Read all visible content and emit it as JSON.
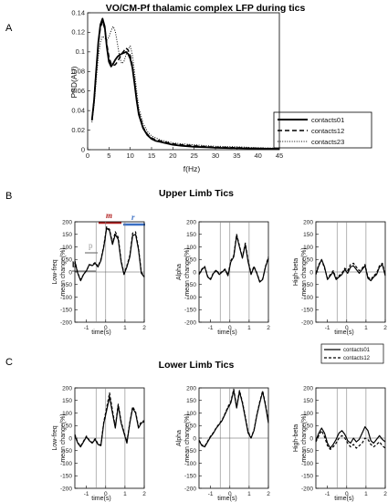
{
  "panel_letters": [
    "A",
    "B",
    "C"
  ],
  "section_titles": {
    "B": "Upper Limb Tics",
    "C": "Lower Limb Tics"
  },
  "colors": {
    "m_bar": "#b22222",
    "r_bar": "#3a6fc4",
    "p_bar": "#999999",
    "grid": "#808080"
  },
  "annotations": {
    "b": "b",
    "p": "p",
    "m": "m",
    "r": "r"
  },
  "chart_data": [
    {
      "id": "A",
      "type": "line",
      "title": "VO/CM-Pf thalamic complex LFP during tics",
      "xlabel": "f(Hz)",
      "ylabel": "PSD(AU)",
      "xlim": [
        0,
        45
      ],
      "ylim": [
        0,
        0.14
      ],
      "xticks": [
        0,
        5,
        10,
        15,
        20,
        25,
        30,
        35,
        40,
        45
      ],
      "yticks": [
        0,
        0.02,
        0.04,
        0.06,
        0.08,
        0.1,
        0.12,
        0.14
      ],
      "legend_position": "bottom-right",
      "x": [
        1,
        1.5,
        2,
        2.5,
        3,
        3.5,
        4,
        4.5,
        5,
        5.5,
        6,
        6.5,
        7,
        7.5,
        8,
        8.5,
        9,
        9.5,
        10,
        10.5,
        11,
        11.5,
        12,
        13,
        14,
        15,
        16,
        17,
        18,
        20,
        22,
        25,
        28,
        30,
        35,
        40,
        45
      ],
      "series": [
        {
          "name": "contacts01",
          "style": "solid",
          "values": [
            0.03,
            0.05,
            0.08,
            0.11,
            0.128,
            0.134,
            0.126,
            0.105,
            0.09,
            0.085,
            0.088,
            0.092,
            0.095,
            0.097,
            0.098,
            0.099,
            0.1,
            0.098,
            0.093,
            0.084,
            0.068,
            0.05,
            0.036,
            0.022,
            0.015,
            0.011,
            0.009,
            0.008,
            0.007,
            0.005,
            0.004,
            0.003,
            0.0025,
            0.002,
            0.0015,
            0.001,
            0.001
          ]
        },
        {
          "name": "contacts12",
          "style": "dashed",
          "values": [
            0.03,
            0.05,
            0.079,
            0.108,
            0.125,
            0.131,
            0.124,
            0.108,
            0.095,
            0.088,
            0.086,
            0.087,
            0.09,
            0.094,
            0.098,
            0.101,
            0.104,
            0.102,
            0.096,
            0.086,
            0.07,
            0.052,
            0.038,
            0.023,
            0.016,
            0.012,
            0.01,
            0.009,
            0.008,
            0.006,
            0.005,
            0.004,
            0.003,
            0.0025,
            0.002,
            0.0015,
            0.001
          ]
        },
        {
          "name": "contacts23",
          "style": "dotted",
          "values": [
            0.028,
            0.045,
            0.07,
            0.095,
            0.11,
            0.116,
            0.114,
            0.112,
            0.115,
            0.122,
            0.126,
            0.121,
            0.108,
            0.095,
            0.088,
            0.09,
            0.097,
            0.103,
            0.106,
            0.097,
            0.08,
            0.06,
            0.043,
            0.027,
            0.019,
            0.014,
            0.012,
            0.01,
            0.009,
            0.007,
            0.006,
            0.005,
            0.004,
            0.0035,
            0.003,
            0.002,
            0.0015
          ]
        }
      ]
    },
    {
      "id": "B1",
      "type": "line",
      "group": "Upper Limb Tics",
      "ylabel": [
        "Low-freq",
        "mean change(%)"
      ],
      "xlabel": "time(s)",
      "xlim": [
        -1.6,
        2
      ],
      "ylim": [
        -200,
        200
      ],
      "xticks": [
        -1,
        0,
        1,
        2
      ],
      "yticks": [
        -200,
        -150,
        -100,
        -50,
        0,
        50,
        100,
        150,
        200
      ],
      "vlines": [
        -0.5,
        0,
        1
      ],
      "x": [
        -1.6,
        -1.45,
        -1.3,
        -1.15,
        -1.0,
        -0.85,
        -0.7,
        -0.55,
        -0.4,
        -0.25,
        -0.1,
        0.05,
        0.2,
        0.35,
        0.5,
        0.65,
        0.8,
        0.95,
        1.1,
        1.25,
        1.4,
        1.55,
        1.7,
        1.85,
        2.0
      ],
      "series": [
        {
          "name": "contacts01",
          "values": [
            40,
            -5,
            -35,
            -10,
            5,
            30,
            25,
            35,
            20,
            45,
            100,
            175,
            165,
            110,
            150,
            130,
            40,
            -10,
            20,
            60,
            145,
            150,
            90,
            -5,
            -20
          ]
        },
        {
          "name": "contacts12",
          "values": [
            45,
            -5,
            -30,
            -10,
            5,
            28,
            28,
            38,
            22,
            50,
            105,
            180,
            170,
            115,
            160,
            138,
            45,
            -5,
            25,
            65,
            155,
            160,
            95,
            0,
            -18
          ]
        }
      ]
    },
    {
      "id": "B2",
      "type": "line",
      "group": "Upper Limb Tics",
      "ylabel": [
        "Alpha",
        "mean change(%)"
      ],
      "xlabel": "time(s)",
      "xlim": [
        -1.6,
        2
      ],
      "ylim": [
        -200,
        200
      ],
      "xticks": [
        -1,
        0,
        1,
        2
      ],
      "yticks": [
        -200,
        -150,
        -100,
        -50,
        0,
        50,
        100,
        150,
        200
      ],
      "vlines": [
        -0.5,
        0,
        1
      ],
      "x": [
        -1.6,
        -1.45,
        -1.3,
        -1.15,
        -1.0,
        -0.85,
        -0.7,
        -0.55,
        -0.4,
        -0.25,
        -0.1,
        0.05,
        0.2,
        0.35,
        0.5,
        0.65,
        0.8,
        0.95,
        1.1,
        1.25,
        1.4,
        1.55,
        1.7,
        1.85,
        2.0
      ],
      "series": [
        {
          "name": "contacts01",
          "values": [
            -10,
            10,
            20,
            -20,
            -30,
            -5,
            5,
            -10,
            0,
            10,
            -15,
            40,
            60,
            145,
            100,
            55,
            110,
            40,
            -10,
            20,
            -5,
            -40,
            -30,
            20,
            55
          ]
        },
        {
          "name": "contacts12",
          "values": [
            -8,
            12,
            22,
            -18,
            -28,
            -3,
            8,
            -8,
            2,
            12,
            -12,
            45,
            65,
            150,
            105,
            58,
            115,
            45,
            -5,
            22,
            -3,
            -38,
            -28,
            22,
            60
          ]
        }
      ]
    },
    {
      "id": "B3",
      "type": "line",
      "group": "Upper Limb Tics",
      "ylabel": [
        "High-beta",
        "mean change(%)"
      ],
      "xlabel": "time(s)",
      "xlim": [
        -1.6,
        2
      ],
      "ylim": [
        -200,
        200
      ],
      "xticks": [
        -1,
        0,
        1,
        2
      ],
      "yticks": [
        -200,
        -150,
        -100,
        -50,
        0,
        50,
        100,
        150,
        200
      ],
      "vlines": [
        -0.5,
        0,
        1
      ],
      "x": [
        -1.6,
        -1.45,
        -1.3,
        -1.15,
        -1.0,
        -0.85,
        -0.7,
        -0.55,
        -0.4,
        -0.25,
        -0.1,
        0.05,
        0.2,
        0.35,
        0.5,
        0.65,
        0.8,
        0.95,
        1.1,
        1.25,
        1.4,
        1.55,
        1.7,
        1.85,
        2.0
      ],
      "series": [
        {
          "name": "contacts01",
          "values": [
            -10,
            25,
            50,
            20,
            -30,
            -15,
            0,
            -30,
            -20,
            -10,
            10,
            -5,
            20,
            25,
            10,
            -5,
            10,
            25,
            -25,
            -35,
            -20,
            -10,
            20,
            30,
            -15
          ]
        },
        {
          "name": "contacts12",
          "values": [
            -5,
            30,
            48,
            15,
            -25,
            -10,
            5,
            -25,
            -15,
            -5,
            15,
            5,
            30,
            35,
            20,
            5,
            15,
            30,
            -20,
            -30,
            -15,
            -5,
            25,
            35,
            -10
          ]
        }
      ]
    },
    {
      "id": "C1",
      "type": "line",
      "group": "Lower Limb Tics",
      "ylabel": [
        "Low-freq",
        "mean change(%)"
      ],
      "xlabel": "time(s)",
      "xlim": [
        -1.6,
        2
      ],
      "ylim": [
        -200,
        200
      ],
      "xticks": [
        -1,
        0,
        1,
        2
      ],
      "yticks": [
        -200,
        -150,
        -100,
        -50,
        0,
        50,
        100,
        150,
        200
      ],
      "vlines": [
        -0.5,
        0,
        1
      ],
      "legend_position": "top-right",
      "x": [
        -1.6,
        -1.45,
        -1.3,
        -1.15,
        -1.0,
        -0.85,
        -0.7,
        -0.55,
        -0.4,
        -0.25,
        -0.1,
        0.05,
        0.2,
        0.35,
        0.5,
        0.65,
        0.8,
        0.95,
        1.1,
        1.25,
        1.4,
        1.55,
        1.7,
        1.85,
        2.0
      ],
      "series": [
        {
          "name": "contacts01",
          "values": [
            10,
            -20,
            -35,
            -15,
            5,
            -10,
            -20,
            -5,
            -25,
            -30,
            60,
            110,
            165,
            100,
            40,
            130,
            60,
            20,
            -20,
            60,
            120,
            100,
            40,
            60,
            65
          ]
        },
        {
          "name": "contacts12",
          "values": [
            15,
            -18,
            -32,
            -12,
            8,
            -8,
            -18,
            -2,
            -22,
            -28,
            65,
            120,
            180,
            110,
            45,
            135,
            65,
            25,
            -15,
            62,
            125,
            105,
            45,
            65,
            70
          ]
        }
      ]
    },
    {
      "id": "C2",
      "type": "line",
      "group": "Lower Limb Tics",
      "ylabel": [
        "Alpha",
        "mean change(%)"
      ],
      "xlabel": "time(s)",
      "xlim": [
        -1.6,
        2
      ],
      "ylim": [
        -200,
        200
      ],
      "xticks": [
        -1,
        0,
        1,
        2
      ],
      "yticks": [
        -200,
        -150,
        -100,
        -50,
        0,
        50,
        100,
        150,
        200
      ],
      "vlines": [
        -0.5,
        0,
        1
      ],
      "x": [
        -1.6,
        -1.45,
        -1.3,
        -1.15,
        -1.0,
        -0.85,
        -0.7,
        -0.55,
        -0.4,
        -0.25,
        -0.1,
        0.05,
        0.2,
        0.35,
        0.5,
        0.65,
        0.8,
        0.95,
        1.1,
        1.25,
        1.4,
        1.55,
        1.7,
        1.85,
        2.0
      ],
      "series": [
        {
          "name": "contacts01",
          "values": [
            -10,
            -30,
            -35,
            -15,
            5,
            20,
            40,
            55,
            70,
            95,
            120,
            140,
            190,
            120,
            185,
            140,
            80,
            20,
            0,
            30,
            90,
            140,
            185,
            130,
            60
          ]
        },
        {
          "name": "contacts12",
          "values": [
            -8,
            -28,
            -32,
            -12,
            8,
            22,
            42,
            58,
            72,
            98,
            125,
            145,
            195,
            125,
            190,
            145,
            85,
            25,
            2,
            32,
            92,
            145,
            188,
            135,
            65
          ]
        }
      ]
    },
    {
      "id": "C3",
      "type": "line",
      "group": "Lower Limb Tics",
      "ylabel": [
        "High-beta",
        "mean change(%)"
      ],
      "xlabel": "time(s)",
      "xlim": [
        -1.6,
        2
      ],
      "ylim": [
        -200,
        200
      ],
      "xticks": [
        -1,
        0,
        1,
        2
      ],
      "yticks": [
        -200,
        -150,
        -100,
        -50,
        0,
        50,
        100,
        150,
        200
      ],
      "vlines": [
        -0.5,
        0,
        1
      ],
      "x": [
        -1.6,
        -1.45,
        -1.3,
        -1.15,
        -1.0,
        -0.85,
        -0.7,
        -0.55,
        -0.4,
        -0.25,
        -0.1,
        0.05,
        0.2,
        0.35,
        0.5,
        0.65,
        0.8,
        0.95,
        1.1,
        1.25,
        1.4,
        1.55,
        1.7,
        1.85,
        2.0
      ],
      "series": [
        {
          "name": "contacts01",
          "values": [
            -10,
            20,
            40,
            20,
            -20,
            -40,
            -25,
            -5,
            20,
            30,
            15,
            -10,
            -20,
            0,
            -15,
            -5,
            20,
            45,
            30,
            -10,
            -20,
            -5,
            10,
            -5,
            -15
          ]
        },
        {
          "name": "contacts12",
          "values": [
            -15,
            10,
            30,
            5,
            -30,
            -45,
            -35,
            -20,
            0,
            10,
            0,
            -20,
            -35,
            -25,
            -40,
            -30,
            -20,
            0,
            -5,
            -25,
            -35,
            -25,
            -15,
            -30,
            -40
          ]
        }
      ]
    }
  ]
}
